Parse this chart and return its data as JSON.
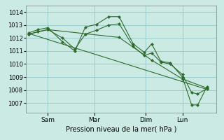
{
  "background_color": "#cceae4",
  "grid_color": "#99cccc",
  "line_color": "#2d6b2d",
  "title": "Pression niveau de la mer( hPa )",
  "ylim": [
    1006.25,
    1014.5
  ],
  "yticks": [
    1007,
    1008,
    1009,
    1010,
    1011,
    1012,
    1013,
    1014
  ],
  "xtick_labels": [
    "Sam",
    "Mar",
    "Dim",
    "Lun"
  ],
  "xtick_positions": [
    36,
    112,
    195,
    255
  ],
  "xlim_data": [
    0,
    310
  ],
  "series": [
    {
      "x": [
        5,
        20,
        36,
        60,
        80,
        97,
        115,
        135,
        152,
        175,
        193,
        205,
        220,
        235,
        255,
        270,
        280,
        295
      ],
      "y": [
        1012.4,
        1012.65,
        1012.8,
        1011.7,
        1011.0,
        1012.85,
        1013.05,
        1013.65,
        1013.65,
        1011.55,
        1010.9,
        1011.55,
        1010.2,
        1010.1,
        1009.0,
        1006.85,
        1006.85,
        1008.25
      ],
      "markers": true
    },
    {
      "x": [
        5,
        20,
        36,
        60,
        80,
        97,
        115,
        135,
        152,
        175,
        193,
        205,
        220,
        235,
        255,
        270,
        280,
        295
      ],
      "y": [
        1012.3,
        1012.5,
        1012.65,
        1012.0,
        1011.15,
        1012.3,
        1012.6,
        1013.0,
        1013.1,
        1011.35,
        1010.65,
        1010.85,
        1010.15,
        1010.0,
        1009.2,
        1007.8,
        1007.7,
        1008.1
      ],
      "markers": true
    },
    {
      "x": [
        5,
        295
      ],
      "y": [
        1012.35,
        1008.05
      ],
      "markers": false
    },
    {
      "x": [
        5,
        36,
        152,
        205,
        255,
        295
      ],
      "y": [
        1012.3,
        1012.65,
        1012.05,
        1010.3,
        1008.85,
        1008.15
      ],
      "markers": true
    }
  ]
}
